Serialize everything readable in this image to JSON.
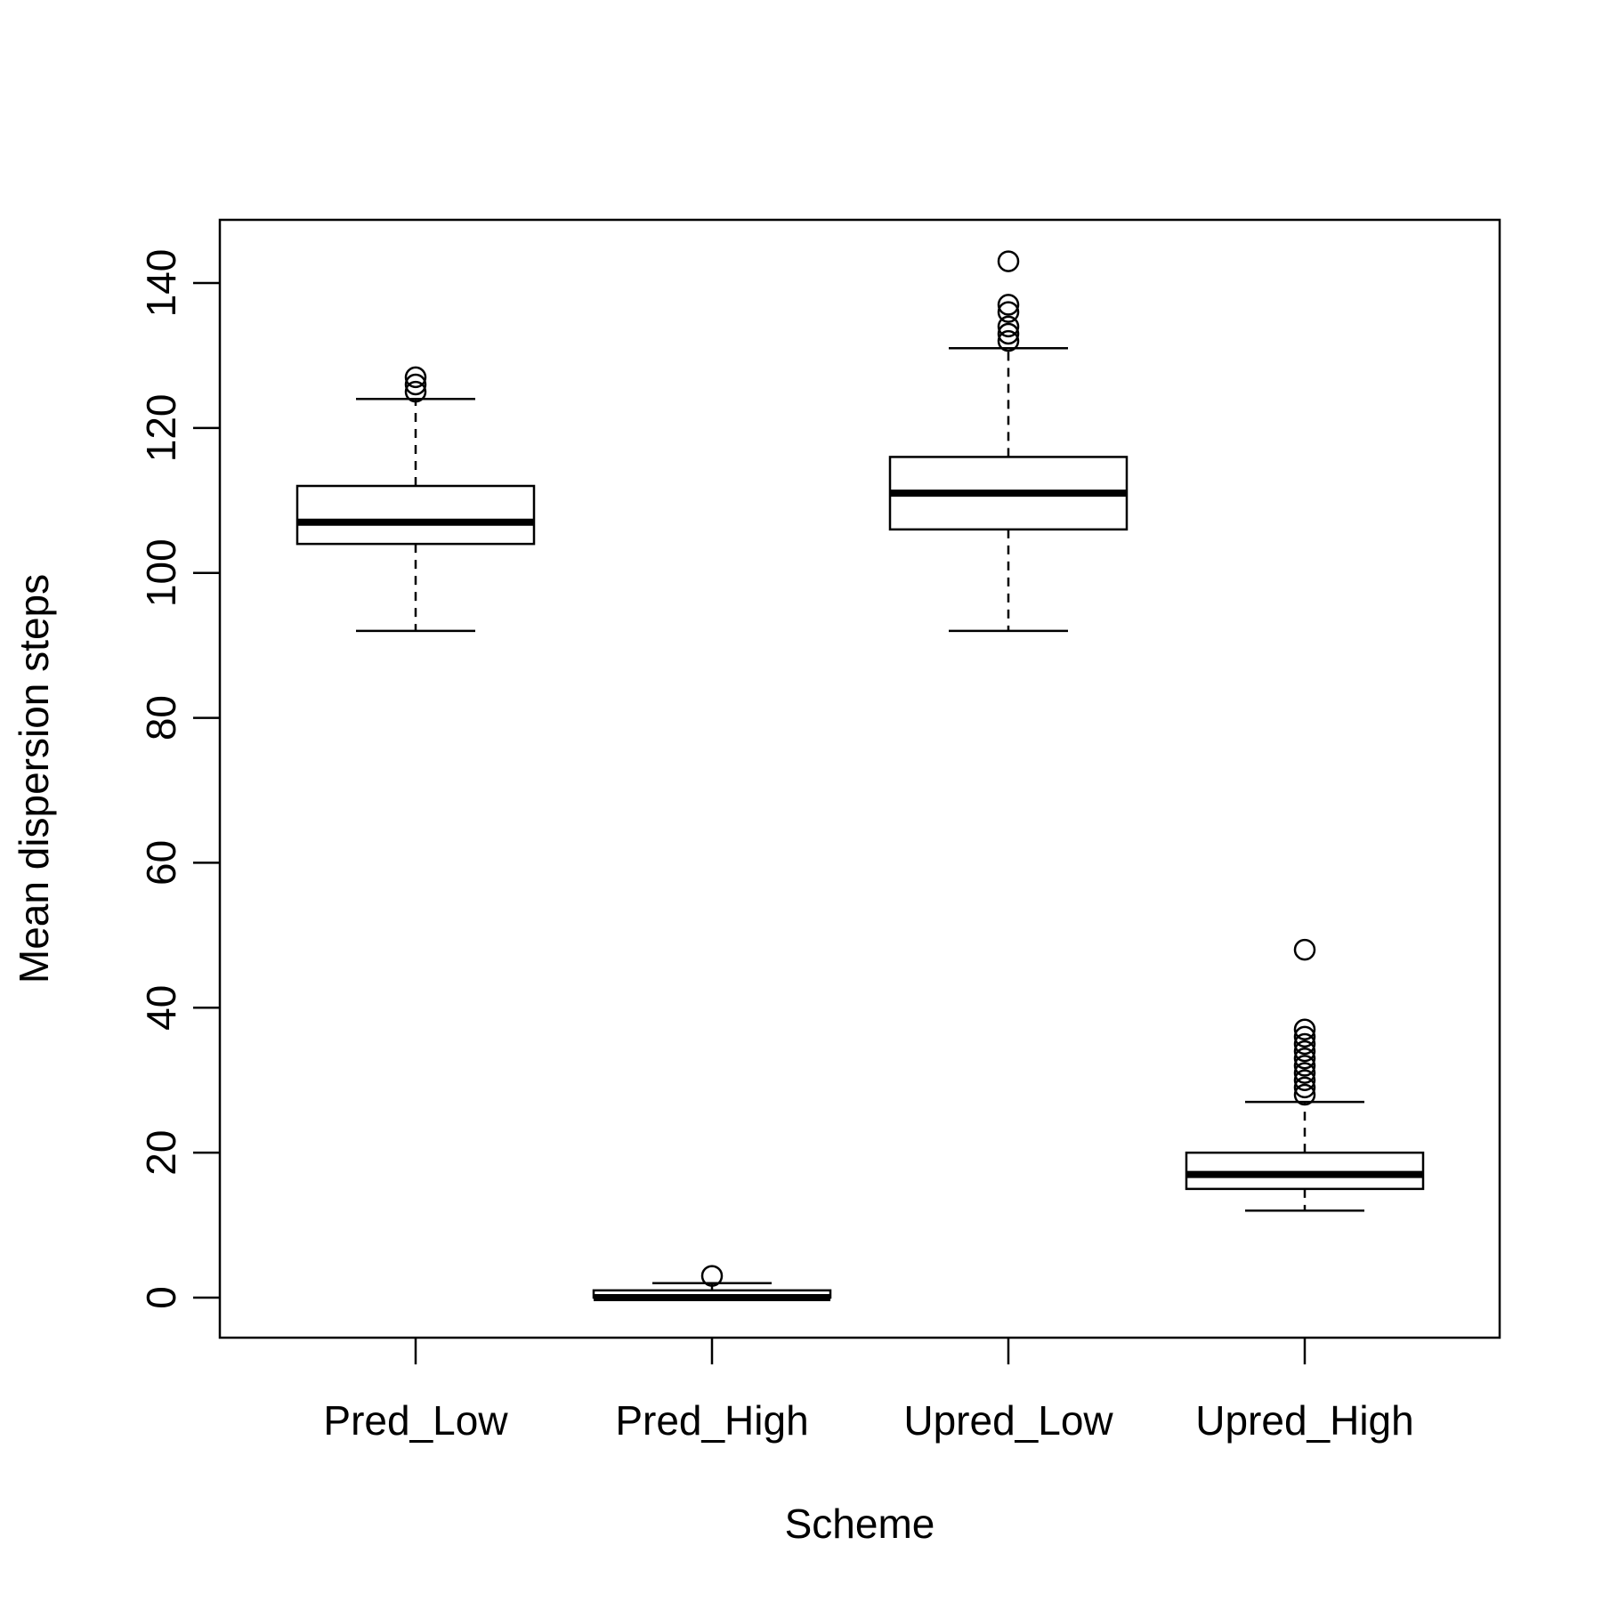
{
  "chart_data": {
    "type": "box",
    "xlabel": "Scheme",
    "ylabel": "Mean dispersion steps",
    "ylim": [
      -6,
      148
    ],
    "yticks": [
      0,
      20,
      40,
      60,
      80,
      100,
      120,
      140
    ],
    "grid": false,
    "categories": [
      "Pred_Low",
      "Pred_High",
      "Upred_Low",
      "Upred_High"
    ],
    "boxes": [
      {
        "category": "Pred_Low",
        "whisker_low": 92,
        "q1": 104,
        "median": 107,
        "q3": 112,
        "whisker_high": 124,
        "outliers": [
          125,
          126,
          127
        ]
      },
      {
        "category": "Pred_High",
        "whisker_low": 0,
        "q1": 0,
        "median": 0,
        "q3": 1,
        "whisker_high": 2,
        "outliers": [
          3
        ]
      },
      {
        "category": "Upred_Low",
        "whisker_low": 92,
        "q1": 106,
        "median": 111,
        "q3": 116,
        "whisker_high": 131,
        "outliers": [
          132,
          133,
          134,
          136,
          137,
          143
        ]
      },
      {
        "category": "Upred_High",
        "whisker_low": 12,
        "q1": 15,
        "median": 17,
        "q3": 20,
        "whisker_high": 27,
        "outliers": [
          28,
          29,
          30,
          31,
          32,
          33,
          34,
          35,
          36,
          37,
          48
        ]
      }
    ]
  }
}
